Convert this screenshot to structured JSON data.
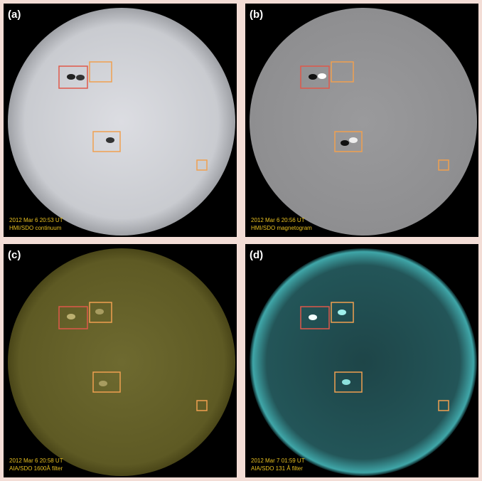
{
  "panels": [
    {
      "label": "(a)",
      "date": "2012 Mar 6 20:53 UT",
      "instrument": "HMI/SDO continuum"
    },
    {
      "label": "(b)",
      "date": "2012 Mar 6 20:56 UT",
      "instrument": "HMI/SDO magnetogram"
    },
    {
      "label": "(c)",
      "date": "2012 Mar 6 20:58 UT",
      "instrument": "AIA/SDO 1600Å filter"
    },
    {
      "label": "(d)",
      "date": "2012 Mar 7 01:59 UT",
      "instrument": "AIA/SDO 131 Å filter"
    }
  ]
}
